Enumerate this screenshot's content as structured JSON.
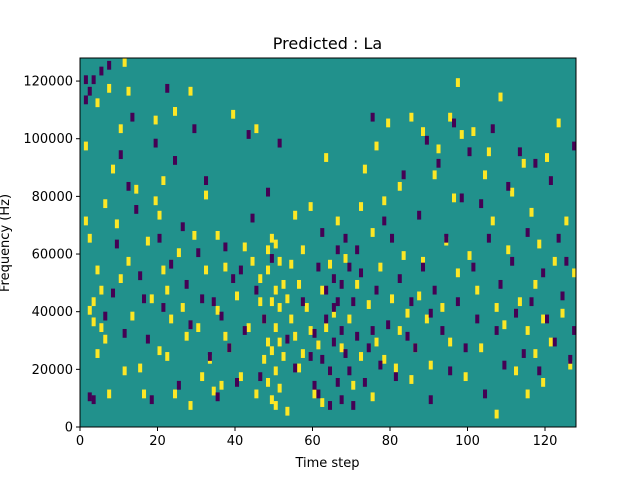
{
  "chart_data": {
    "type": "heatmap",
    "title": "Predicted : La",
    "xlabel": "Time step",
    "ylabel": "Frequency (Hz)",
    "xlim": [
      0,
      128
    ],
    "ylim": [
      0,
      128000
    ],
    "xticks": [
      0,
      20,
      40,
      60,
      80,
      100,
      120
    ],
    "yticks": [
      0,
      20000,
      40000,
      60000,
      80000,
      100000,
      120000
    ],
    "n_cols": 128,
    "n_rows": 128,
    "bin_height_hz": 1000,
    "value_levels": [
      -1,
      0,
      1
    ],
    "colors": {
      "background": "#21918c",
      "low": "#440154",
      "high": "#fde725"
    },
    "cells": {
      "high": [
        [
          1,
          98
        ],
        [
          1,
          72
        ],
        [
          2,
          66
        ],
        [
          2,
          41
        ],
        [
          3,
          44
        ],
        [
          3,
          37
        ],
        [
          4,
          113
        ],
        [
          4,
          55
        ],
        [
          4,
          26
        ],
        [
          5,
          48
        ],
        [
          5,
          35
        ],
        [
          6,
          78
        ],
        [
          6,
          31
        ],
        [
          7,
          118
        ],
        [
          7,
          12
        ],
        [
          8,
          90
        ],
        [
          9,
          71
        ],
        [
          10,
          104
        ],
        [
          10,
          52
        ],
        [
          11,
          127
        ],
        [
          11,
          20
        ],
        [
          12,
          117
        ],
        [
          12,
          58
        ],
        [
          13,
          39
        ],
        [
          14,
          83
        ],
        [
          15,
          21
        ],
        [
          16,
          12
        ],
        [
          17,
          65
        ],
        [
          18,
          45
        ],
        [
          19,
          107
        ],
        [
          19,
          79
        ],
        [
          20,
          74
        ],
        [
          20,
          27
        ],
        [
          21,
          86
        ],
        [
          21,
          55
        ],
        [
          22,
          48
        ],
        [
          22,
          25
        ],
        [
          23,
          38
        ],
        [
          24,
          110
        ],
        [
          24,
          12
        ],
        [
          25,
          61
        ],
        [
          26,
          42
        ],
        [
          27,
          32
        ],
        [
          28,
          117
        ],
        [
          28,
          8
        ],
        [
          29,
          67
        ],
        [
          30,
          35
        ],
        [
          31,
          18
        ],
        [
          32,
          81
        ],
        [
          32,
          55
        ],
        [
          33,
          24
        ],
        [
          34,
          13
        ],
        [
          35,
          67
        ],
        [
          35,
          41
        ],
        [
          36,
          15
        ],
        [
          37,
          56
        ],
        [
          37,
          32
        ],
        [
          38,
          28
        ],
        [
          39,
          109
        ],
        [
          40,
          46
        ],
        [
          41,
          18
        ],
        [
          42,
          63
        ],
        [
          43,
          35
        ],
        [
          44,
          58
        ],
        [
          45,
          12
        ],
        [
          45,
          104
        ],
        [
          46,
          44
        ],
        [
          46,
          52
        ],
        [
          47,
          38
        ],
        [
          47,
          24
        ],
        [
          48,
          62
        ],
        [
          48,
          30
        ],
        [
          48,
          16
        ],
        [
          48,
          55
        ],
        [
          49,
          66
        ],
        [
          49,
          44
        ],
        [
          49,
          27
        ],
        [
          49,
          10
        ],
        [
          50,
          64
        ],
        [
          50,
          48
        ],
        [
          50,
          35
        ],
        [
          50,
          20
        ],
        [
          50,
          8
        ],
        [
          51,
          58
        ],
        [
          51,
          42
        ],
        [
          51,
          30
        ],
        [
          51,
          14
        ],
        [
          52,
          50
        ],
        [
          52,
          25
        ],
        [
          53,
          45
        ],
        [
          53,
          6
        ],
        [
          54,
          57
        ],
        [
          54,
          38
        ],
        [
          55,
          74
        ],
        [
          55,
          32
        ],
        [
          56,
          50
        ],
        [
          56,
          21
        ],
        [
          57,
          62
        ],
        [
          57,
          26
        ],
        [
          58,
          42
        ],
        [
          59,
          77
        ],
        [
          59,
          34
        ],
        [
          60,
          12
        ],
        [
          61,
          29
        ],
        [
          62,
          48
        ],
        [
          62,
          9
        ],
        [
          63,
          94
        ],
        [
          63,
          35
        ],
        [
          64,
          57
        ],
        [
          64,
          20
        ],
        [
          65,
          40
        ],
        [
          66,
          72
        ],
        [
          67,
          28
        ],
        [
          68,
          59
        ],
        [
          69,
          38
        ],
        [
          70,
          15
        ],
        [
          71,
          50
        ],
        [
          72,
          77
        ],
        [
          72,
          25
        ],
        [
          73,
          90
        ],
        [
          74,
          43
        ],
        [
          75,
          68
        ],
        [
          75,
          11
        ],
        [
          76,
          98
        ],
        [
          76,
          30
        ],
        [
          77,
          56
        ],
        [
          78,
          79
        ],
        [
          78,
          24
        ],
        [
          79,
          106
        ],
        [
          80,
          45
        ],
        [
          81,
          21
        ],
        [
          82,
          84
        ],
        [
          82,
          34
        ],
        [
          83,
          60
        ],
        [
          84,
          40
        ],
        [
          85,
          108
        ],
        [
          85,
          17
        ],
        [
          86,
          28
        ],
        [
          87,
          46
        ],
        [
          88,
          103
        ],
        [
          88,
          58
        ],
        [
          89,
          38
        ],
        [
          90,
          22
        ],
        [
          91,
          88
        ],
        [
          92,
          97
        ],
        [
          93,
          42
        ],
        [
          94,
          65
        ],
        [
          95,
          108
        ],
        [
          95,
          30
        ],
        [
          96,
          80
        ],
        [
          97,
          120
        ],
        [
          97,
          54
        ],
        [
          98,
          102
        ],
        [
          99,
          18
        ],
        [
          100,
          60
        ],
        [
          101,
          103
        ],
        [
          102,
          48
        ],
        [
          103,
          28
        ],
        [
          104,
          88
        ],
        [
          105,
          96
        ],
        [
          106,
          72
        ],
        [
          107,
          42
        ],
        [
          107,
          5
        ],
        [
          108,
          115
        ],
        [
          109,
          36
        ],
        [
          110,
          62
        ],
        [
          111,
          82
        ],
        [
          112,
          20
        ],
        [
          113,
          44
        ],
        [
          114,
          92
        ],
        [
          115,
          12
        ],
        [
          115,
          34
        ],
        [
          116,
          75
        ],
        [
          117,
          50
        ],
        [
          117,
          26
        ],
        [
          118,
          64
        ],
        [
          119,
          38
        ],
        [
          119,
          16
        ],
        [
          120,
          94
        ],
        [
          121,
          30
        ],
        [
          122,
          58
        ],
        [
          123,
          106
        ],
        [
          124,
          40
        ],
        [
          125,
          72
        ],
        [
          126,
          22
        ],
        [
          127,
          54
        ]
      ],
      "low": [
        [
          1,
          121
        ],
        [
          1,
          114
        ],
        [
          2,
          117
        ],
        [
          2,
          11
        ],
        [
          3,
          121
        ],
        [
          3,
          10
        ],
        [
          5,
          124
        ],
        [
          6,
          39
        ],
        [
          7,
          126
        ],
        [
          8,
          47
        ],
        [
          9,
          64
        ],
        [
          10,
          95
        ],
        [
          11,
          33
        ],
        [
          12,
          84
        ],
        [
          13,
          108
        ],
        [
          14,
          76
        ],
        [
          15,
          53
        ],
        [
          16,
          45
        ],
        [
          17,
          31
        ],
        [
          18,
          10
        ],
        [
          19,
          99
        ],
        [
          20,
          66
        ],
        [
          21,
          42
        ],
        [
          22,
          118
        ],
        [
          23,
          57
        ],
        [
          24,
          93
        ],
        [
          25,
          15
        ],
        [
          26,
          70
        ],
        [
          27,
          50
        ],
        [
          28,
          36
        ],
        [
          29,
          104
        ],
        [
          30,
          61
        ],
        [
          31,
          45
        ],
        [
          32,
          86
        ],
        [
          33,
          25
        ],
        [
          34,
          44
        ],
        [
          35,
          11
        ],
        [
          36,
          39
        ],
        [
          37,
          63
        ],
        [
          38,
          28
        ],
        [
          39,
          52
        ],
        [
          40,
          16
        ],
        [
          41,
          55
        ],
        [
          42,
          34
        ],
        [
          43,
          102
        ],
        [
          44,
          73
        ],
        [
          45,
          48
        ],
        [
          46,
          18
        ],
        [
          47,
          38
        ],
        [
          48,
          82
        ],
        [
          49,
          59
        ],
        [
          51,
          99
        ],
        [
          53,
          31
        ],
        [
          55,
          21
        ],
        [
          57,
          44
        ],
        [
          59,
          25
        ],
        [
          60,
          15
        ],
        [
          60,
          33
        ],
        [
          61,
          56
        ],
        [
          61,
          12
        ],
        [
          62,
          68
        ],
        [
          62,
          24
        ],
        [
          63,
          48
        ],
        [
          63,
          38
        ],
        [
          64,
          20
        ],
        [
          64,
          8
        ],
        [
          65,
          52
        ],
        [
          65,
          30
        ],
        [
          65,
          42
        ],
        [
          66,
          62
        ],
        [
          66,
          44
        ],
        [
          66,
          16
        ],
        [
          67,
          50
        ],
        [
          67,
          34
        ],
        [
          67,
          10
        ],
        [
          68,
          26
        ],
        [
          68,
          66
        ],
        [
          69,
          56
        ],
        [
          69,
          20
        ],
        [
          70,
          44
        ],
        [
          70,
          8
        ],
        [
          71,
          32
        ],
        [
          71,
          62
        ],
        [
          72,
          54
        ],
        [
          73,
          16
        ],
        [
          74,
          28
        ],
        [
          75,
          108
        ],
        [
          75,
          34
        ],
        [
          76,
          48
        ],
        [
          77,
          22
        ],
        [
          78,
          72
        ],
        [
          79,
          36
        ],
        [
          80,
          66
        ],
        [
          81,
          18
        ],
        [
          82,
          52
        ],
        [
          83,
          88
        ],
        [
          84,
          32
        ],
        [
          85,
          44
        ],
        [
          86,
          28
        ],
        [
          87,
          74
        ],
        [
          88,
          56
        ],
        [
          89,
          100
        ],
        [
          90,
          40
        ],
        [
          90,
          10
        ],
        [
          91,
          48
        ],
        [
          92,
          92
        ],
        [
          93,
          34
        ],
        [
          94,
          66
        ],
        [
          95,
          20
        ],
        [
          96,
          106
        ],
        [
          97,
          44
        ],
        [
          98,
          80
        ],
        [
          99,
          28
        ],
        [
          100,
          96
        ],
        [
          101,
          56
        ],
        [
          102,
          38
        ],
        [
          103,
          78
        ],
        [
          104,
          12
        ],
        [
          105,
          66
        ],
        [
          106,
          104
        ],
        [
          107,
          34
        ],
        [
          108,
          50
        ],
        [
          109,
          22
        ],
        [
          110,
          84
        ],
        [
          111,
          58
        ],
        [
          112,
          40
        ],
        [
          113,
          96
        ],
        [
          114,
          26
        ],
        [
          115,
          68
        ],
        [
          116,
          44
        ],
        [
          117,
          92
        ],
        [
          118,
          20
        ],
        [
          119,
          54
        ],
        [
          120,
          38
        ],
        [
          121,
          86
        ],
        [
          122,
          30
        ],
        [
          123,
          66
        ],
        [
          124,
          46
        ],
        [
          125,
          58
        ],
        [
          126,
          24
        ],
        [
          127,
          98
        ],
        [
          127,
          34
        ]
      ]
    }
  }
}
